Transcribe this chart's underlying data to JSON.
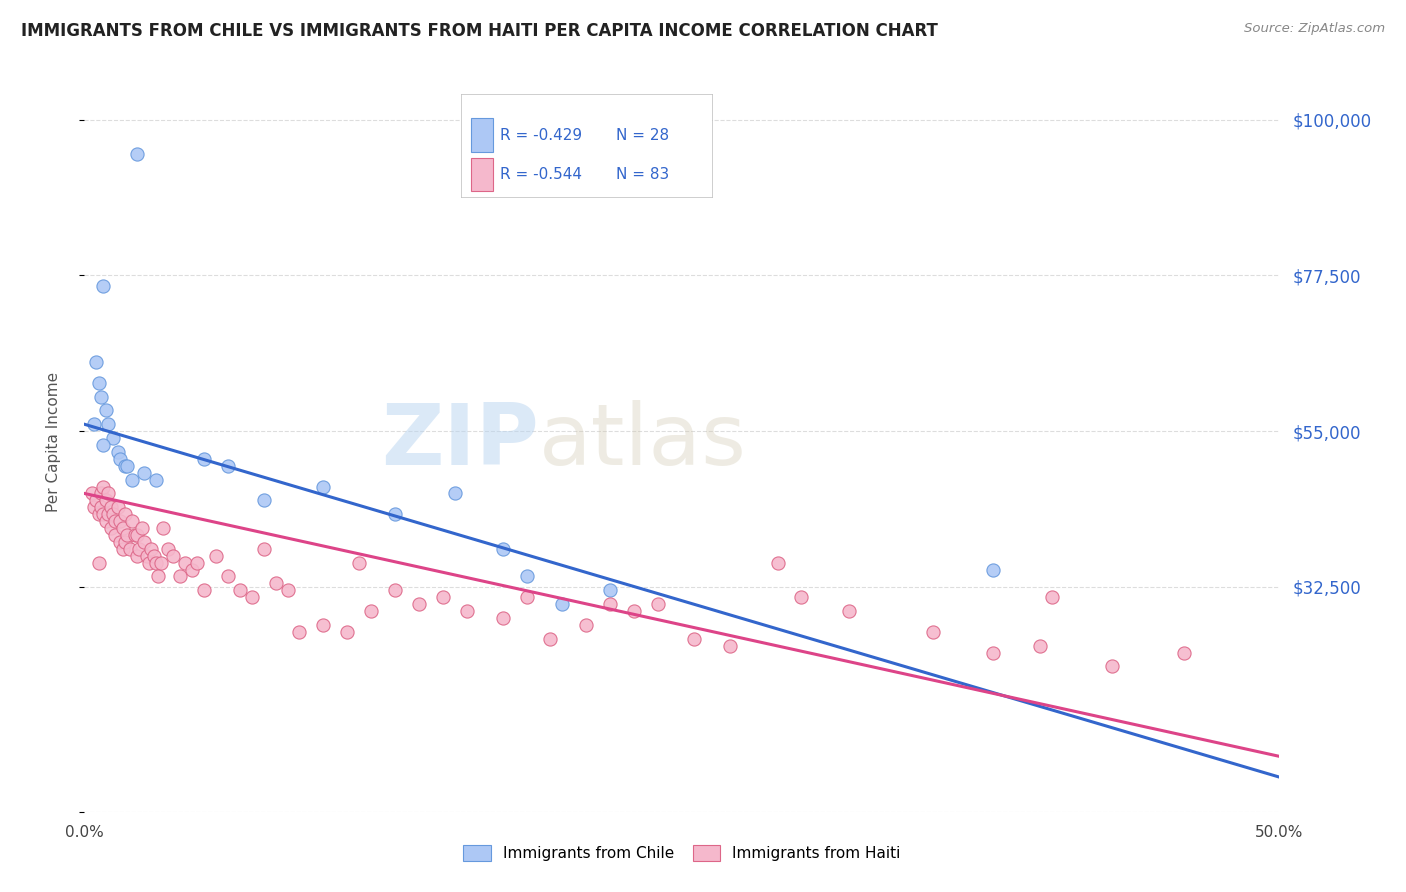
{
  "title": "IMMIGRANTS FROM CHILE VS IMMIGRANTS FROM HAITI PER CAPITA INCOME CORRELATION CHART",
  "source": "Source: ZipAtlas.com",
  "ylabel": "Per Capita Income",
  "xlim": [
    0.0,
    0.5
  ],
  "ylim": [
    0,
    107000
  ],
  "yticks": [
    0,
    32500,
    55000,
    77500,
    100000
  ],
  "ytick_labels": [
    "",
    "$32,500",
    "$55,000",
    "$77,500",
    "$100,000"
  ],
  "xticks": [
    0.0,
    0.1,
    0.2,
    0.3,
    0.4,
    0.5
  ],
  "xtick_labels": [
    "0.0%",
    "",
    "",
    "",
    "",
    "50.0%"
  ],
  "watermark_zip": "ZIP",
  "watermark_atlas": "atlas",
  "legend_r1": "-0.429",
  "legend_n1": "28",
  "legend_r2": "-0.544",
  "legend_n2": "83",
  "chile_color": "#adc8f5",
  "haiti_color": "#f5b8cc",
  "chile_edge_color": "#6699dd",
  "haiti_edge_color": "#dd6688",
  "chile_line_color": "#3366cc",
  "haiti_line_color": "#dd4488",
  "title_color": "#222222",
  "source_color": "#888888",
  "ylabel_color": "#555555",
  "tick_right_color": "#3366cc",
  "grid_color": "#dddddd",
  "background_color": "#ffffff",
  "chile_points_x": [
    0.022,
    0.008,
    0.005,
    0.006,
    0.007,
    0.009,
    0.01,
    0.012,
    0.014,
    0.015,
    0.017,
    0.018,
    0.02,
    0.025,
    0.03,
    0.05,
    0.06,
    0.075,
    0.1,
    0.13,
    0.155,
    0.175,
    0.185,
    0.2,
    0.22,
    0.38,
    0.004,
    0.008
  ],
  "chile_points_y": [
    95000,
    76000,
    65000,
    62000,
    60000,
    58000,
    56000,
    54000,
    52000,
    51000,
    50000,
    50000,
    48000,
    49000,
    48000,
    51000,
    50000,
    45000,
    47000,
    43000,
    46000,
    38000,
    34000,
    30000,
    32000,
    35000,
    56000,
    53000
  ],
  "haiti_points_x": [
    0.003,
    0.004,
    0.005,
    0.006,
    0.007,
    0.007,
    0.008,
    0.008,
    0.009,
    0.009,
    0.01,
    0.01,
    0.011,
    0.011,
    0.012,
    0.013,
    0.013,
    0.014,
    0.015,
    0.015,
    0.016,
    0.016,
    0.017,
    0.017,
    0.018,
    0.019,
    0.02,
    0.021,
    0.022,
    0.022,
    0.023,
    0.024,
    0.025,
    0.026,
    0.027,
    0.028,
    0.029,
    0.03,
    0.031,
    0.032,
    0.033,
    0.035,
    0.037,
    0.04,
    0.042,
    0.045,
    0.047,
    0.05,
    0.055,
    0.06,
    0.065,
    0.07,
    0.075,
    0.08,
    0.085,
    0.09,
    0.1,
    0.11,
    0.115,
    0.12,
    0.13,
    0.14,
    0.15,
    0.16,
    0.175,
    0.185,
    0.195,
    0.21,
    0.22,
    0.23,
    0.24,
    0.255,
    0.27,
    0.3,
    0.32,
    0.355,
    0.38,
    0.4,
    0.43,
    0.46,
    0.006,
    0.29,
    0.405
  ],
  "haiti_points_y": [
    46000,
    44000,
    45000,
    43000,
    46000,
    44000,
    47000,
    43000,
    45000,
    42000,
    46000,
    43000,
    44000,
    41000,
    43000,
    42000,
    40000,
    44000,
    42000,
    39000,
    41000,
    38000,
    43000,
    39000,
    40000,
    38000,
    42000,
    40000,
    37000,
    40000,
    38000,
    41000,
    39000,
    37000,
    36000,
    38000,
    37000,
    36000,
    34000,
    36000,
    41000,
    38000,
    37000,
    34000,
    36000,
    35000,
    36000,
    32000,
    37000,
    34000,
    32000,
    31000,
    38000,
    33000,
    32000,
    26000,
    27000,
    26000,
    36000,
    29000,
    32000,
    30000,
    31000,
    29000,
    28000,
    31000,
    25000,
    27000,
    30000,
    29000,
    30000,
    25000,
    24000,
    31000,
    29000,
    26000,
    23000,
    24000,
    21000,
    23000,
    36000,
    36000,
    31000
  ],
  "chile_line_x0": 0.0,
  "chile_line_y0": 56000,
  "chile_line_x1": 0.5,
  "chile_line_y1": 5000,
  "haiti_line_x0": 0.0,
  "haiti_line_y0": 46000,
  "haiti_line_x1": 0.5,
  "haiti_line_y1": 8000
}
